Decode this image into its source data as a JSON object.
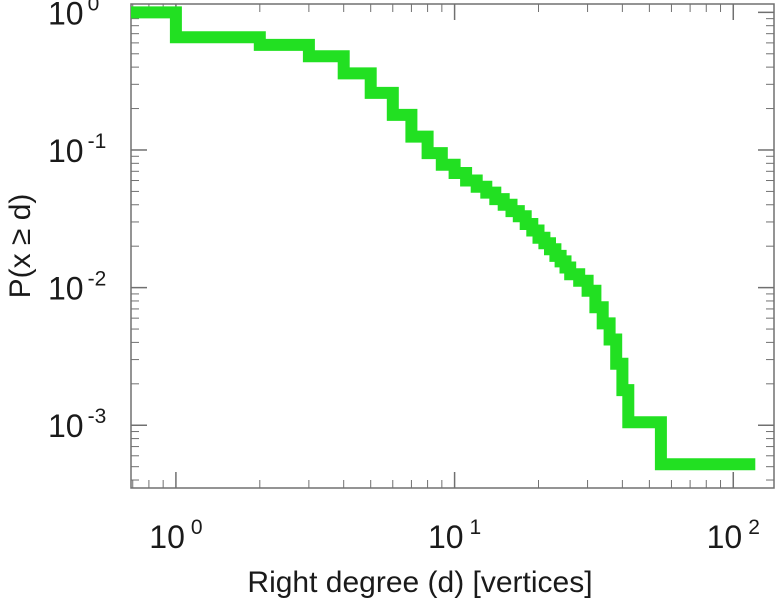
{
  "chart_data": {
    "type": "line",
    "step": true,
    "xscale": "log",
    "yscale": "log",
    "xlabel": "Right degree (d) [vertices]",
    "ylabel": "P(x ≥ d)",
    "xlim": [
      0.69,
      140
    ],
    "ylim": [
      0.00035,
      1.15
    ],
    "xticks": [
      {
        "base": "10",
        "exp": "0",
        "value": 1
      },
      {
        "base": "10",
        "exp": "1",
        "value": 10
      },
      {
        "base": "10",
        "exp": "2",
        "value": 100
      }
    ],
    "yticks": [
      {
        "base": "10",
        "exp": "0",
        "value": 1
      },
      {
        "base": "10",
        "exp": "-1",
        "value": 0.1
      },
      {
        "base": "10",
        "exp": "-2",
        "value": 0.01
      },
      {
        "base": "10",
        "exp": "-3",
        "value": 0.001
      }
    ],
    "grid": false,
    "line_color": "#22e022",
    "series": [
      {
        "x": [
          0.69,
          1,
          2,
          3,
          4,
          5,
          6,
          7,
          8,
          9,
          10,
          11,
          12,
          13,
          14,
          15,
          16,
          17,
          18,
          19,
          20,
          21,
          22,
          23,
          24,
          25,
          26,
          28,
          30,
          32,
          34,
          36,
          38,
          40,
          42,
          55,
          120
        ],
        "y": [
          1.0,
          0.66,
          0.58,
          0.48,
          0.36,
          0.26,
          0.18,
          0.125,
          0.095,
          0.078,
          0.068,
          0.06,
          0.054,
          0.049,
          0.044,
          0.04,
          0.036,
          0.033,
          0.029,
          0.026,
          0.023,
          0.021,
          0.019,
          0.017,
          0.0155,
          0.014,
          0.0125,
          0.0112,
          0.0095,
          0.0072,
          0.0055,
          0.0042,
          0.0028,
          0.0018,
          0.00105,
          0.00052,
          0.00052
        ]
      }
    ]
  }
}
